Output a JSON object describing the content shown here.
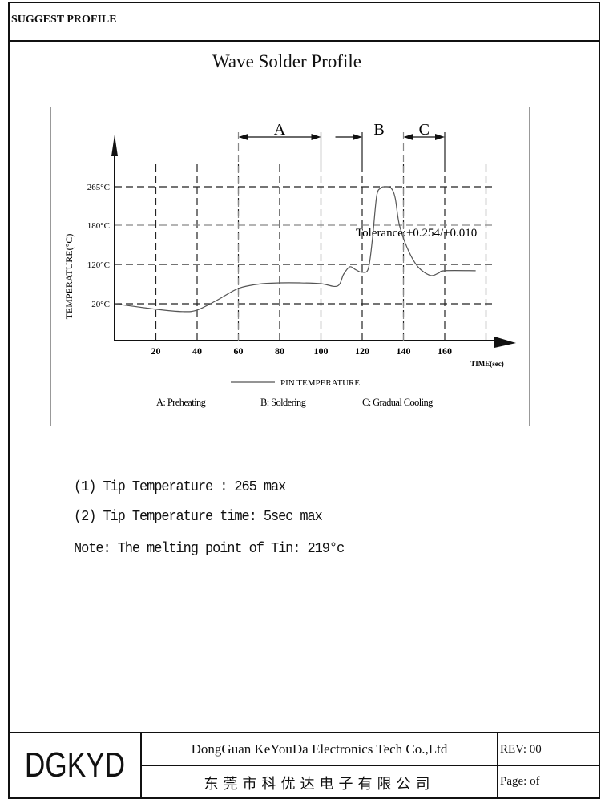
{
  "header": {
    "label": "SUGGEST PROFILE"
  },
  "title": "Wave Solder Profile",
  "chart_data": {
    "type": "line",
    "xlabel": "TIME(sec)",
    "ylabel": "TEMPERATURE(°C)",
    "x_ticks": [
      "20",
      "40",
      "60",
      "80",
      "100",
      "120",
      "140",
      "160"
    ],
    "y_ticks": [
      "20°C",
      "120°C",
      "180°C",
      "265°C"
    ],
    "y_tick_values": [
      20,
      120,
      180,
      265
    ],
    "xlim": [
      0,
      180
    ],
    "grid": true,
    "series": [
      {
        "name": "PIN TEMPERATURE",
        "x": [
          0,
          20,
          33,
          40,
          50,
          60,
          70,
          80,
          90,
          100,
          108,
          111,
          114,
          117,
          120,
          123,
          125,
          127,
          129,
          131,
          134,
          136,
          138,
          142,
          147,
          153,
          157,
          160,
          175
        ],
        "y": [
          20,
          6,
          0,
          4,
          30,
          59,
          70,
          73,
          73,
          71,
          65,
          95,
          114,
          106,
          100,
          110,
          160,
          244,
          262,
          265,
          262,
          240,
          181,
          144,
          114,
          92,
          98,
          104,
          104
        ]
      }
    ],
    "annotation": "Tolerance:±0.254/±0.010",
    "regions": [
      {
        "label": "A",
        "from": 60,
        "to": 100
      },
      {
        "label": "B",
        "from": 107,
        "to": 120
      },
      {
        "label": "C",
        "from": 140,
        "to": 160
      }
    ],
    "legend_line": "PIN TEMPERATURE",
    "legend_regions": [
      "A: Preheating",
      "B: Soldering",
      "C: Gradual Cooling"
    ]
  },
  "notes": [
    "(1) Tip Temperature : 265 max",
    "(2) Tip Temperature time: 5sec max",
    "Note: The melting point of Tin: 219°c"
  ],
  "footer": {
    "logo": "DGKYD",
    "company_en": "DongGuan KeYouDa Electronics Tech Co.,Ltd",
    "company_cn": "东莞市科优达电子有限公司",
    "rev": "REV:   00",
    "page": "Page: of"
  }
}
